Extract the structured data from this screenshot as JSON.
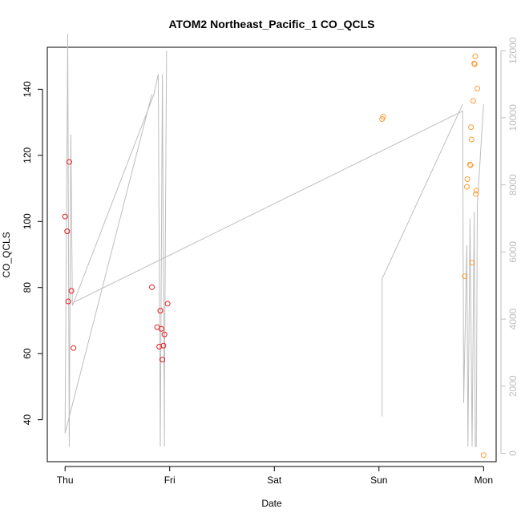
{
  "chart_data": {
    "type": "scatter",
    "title": "ATOM2 Northeast_Pacific_1 CO_QCLS",
    "xlabel": "Date",
    "ylabel": "CO_QCLS",
    "x_ticks": [
      "Thu",
      "Fri",
      "Sat",
      "Sun",
      "Mon"
    ],
    "xlim_days": [
      -0.17,
      4.12
    ],
    "ylim": [
      27.3,
      152.7
    ],
    "y_ticks": [
      40,
      60,
      80,
      100,
      120,
      140
    ],
    "y2lim": [
      -250,
      12100
    ],
    "y2_ticks": [
      0,
      2000,
      4000,
      6000,
      8000,
      10000,
      12000
    ],
    "colors": {
      "red_points": "#e41a1c",
      "orange_points": "#ff9933",
      "altitude_line": "#bebebe",
      "axes": "#000000",
      "right_axis": "#bdbdbd"
    },
    "series": [
      {
        "marker": "circle",
        "color": "#e41a1c",
        "points": [
          {
            "x": 0.0,
            "y": 101.5
          },
          {
            "x": 0.02,
            "y": 97.0
          },
          {
            "x": 0.04,
            "y": 118.0
          },
          {
            "x": 0.03,
            "y": 75.8
          },
          {
            "x": 0.06,
            "y": 79.0
          },
          {
            "x": 0.08,
            "y": 61.7
          },
          {
            "x": 0.83,
            "y": 80.1
          },
          {
            "x": 0.88,
            "y": 68.0
          },
          {
            "x": 0.91,
            "y": 73.0
          },
          {
            "x": 0.9,
            "y": 62.1
          },
          {
            "x": 0.92,
            "y": 67.5
          },
          {
            "x": 0.93,
            "y": 58.2
          },
          {
            "x": 0.94,
            "y": 62.4
          },
          {
            "x": 0.95,
            "y": 65.8
          },
          {
            "x": 0.98,
            "y": 75.1
          }
        ]
      },
      {
        "marker": "circle",
        "color": "#ff9933",
        "points": [
          {
            "x": 3.03,
            "y": 131.0
          },
          {
            "x": 3.04,
            "y": 131.7
          },
          {
            "x": 3.82,
            "y": 83.4
          },
          {
            "x": 3.84,
            "y": 110.5
          },
          {
            "x": 3.845,
            "y": 112.8
          },
          {
            "x": 3.87,
            "y": 117.2
          },
          {
            "x": 3.875,
            "y": 117.0
          },
          {
            "x": 3.88,
            "y": 128.5
          },
          {
            "x": 3.885,
            "y": 124.8
          },
          {
            "x": 3.89,
            "y": 87.5
          },
          {
            "x": 3.9,
            "y": 136.5
          },
          {
            "x": 3.91,
            "y": 147.8
          },
          {
            "x": 3.915,
            "y": 147.6
          },
          {
            "x": 3.92,
            "y": 150.0
          },
          {
            "x": 3.925,
            "y": 108.3
          },
          {
            "x": 3.93,
            "y": 109.3
          },
          {
            "x": 3.94,
            "y": 140.2
          },
          {
            "x": 4.0,
            "y": 29.3
          }
        ]
      }
    ],
    "altitude_segments": [
      [
        {
          "x": 0.0,
          "alt": 600
        },
        {
          "x": 0.025,
          "alt": 12500
        },
        {
          "x": 0.04,
          "alt": 200
        },
        {
          "x": 0.055,
          "alt": 9500
        },
        {
          "x": 0.07,
          "alt": 4400
        },
        {
          "x": 0.083,
          "alt": 4500
        },
        {
          "x": 0.85,
          "alt": 10700
        },
        {
          "x": 0.89,
          "alt": 11300
        },
        {
          "x": 0.91,
          "alt": 200
        },
        {
          "x": 0.93,
          "alt": 11300
        },
        {
          "x": 0.95,
          "alt": 200
        },
        {
          "x": 0.95,
          "alt": 2000
        },
        {
          "x": 0.97,
          "alt": 12000
        }
      ],
      [
        {
          "x": 0.0,
          "alt": 600
        },
        {
          "x": 0.83,
          "alt": 10700
        }
      ],
      [
        {
          "x": 0.083,
          "alt": 4500
        },
        {
          "x": 3.8,
          "alt": 10200
        },
        {
          "x": 3.81,
          "alt": 1500
        },
        {
          "x": 3.84,
          "alt": 6200
        },
        {
          "x": 3.85,
          "alt": 200
        },
        {
          "x": 3.87,
          "alt": 7000
        },
        {
          "x": 3.89,
          "alt": 200
        },
        {
          "x": 3.91,
          "alt": 7200
        },
        {
          "x": 3.92,
          "alt": 200
        },
        {
          "x": 3.93,
          "alt": 200
        },
        {
          "x": 3.94,
          "alt": 7400
        },
        {
          "x": 4.0,
          "alt": 10400
        }
      ],
      [
        {
          "x": 3.03,
          "alt": 1100
        },
        {
          "x": 3.03,
          "alt": 5200
        },
        {
          "x": 3.8,
          "alt": 10400
        }
      ]
    ]
  }
}
